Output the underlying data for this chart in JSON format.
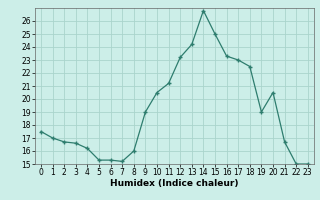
{
  "x_vals": [
    0,
    1,
    2,
    3,
    4,
    5,
    6,
    7,
    8,
    9,
    10,
    11,
    12,
    13,
    14,
    15,
    16,
    17,
    18,
    19,
    20,
    21,
    22,
    23
  ],
  "y_vals": [
    17.5,
    17.0,
    16.7,
    16.6,
    16.2,
    15.3,
    15.3,
    15.2,
    16.0,
    19.0,
    20.5,
    21.2,
    23.2,
    24.2,
    26.8,
    25.0,
    23.3,
    23.0,
    22.5,
    19.0,
    20.5,
    16.7,
    15.0,
    15.0
  ],
  "xlabel": "Humidex (Indice chaleur)",
  "line_color": "#2e7d6e",
  "marker_color": "#2e7d6e",
  "bg_color": "#cceee8",
  "grid_color": "#aad4cc",
  "ylim": [
    15,
    27
  ],
  "xlim": [
    -0.5,
    23.5
  ],
  "yticks": [
    15,
    16,
    17,
    18,
    19,
    20,
    21,
    22,
    23,
    24,
    25,
    26
  ],
  "xticks": [
    0,
    1,
    2,
    3,
    4,
    5,
    6,
    7,
    8,
    9,
    10,
    11,
    12,
    13,
    14,
    15,
    16,
    17,
    18,
    19,
    20,
    21,
    22,
    23
  ],
  "xlabel_fontsize": 6.5,
  "tick_fontsize": 5.5
}
